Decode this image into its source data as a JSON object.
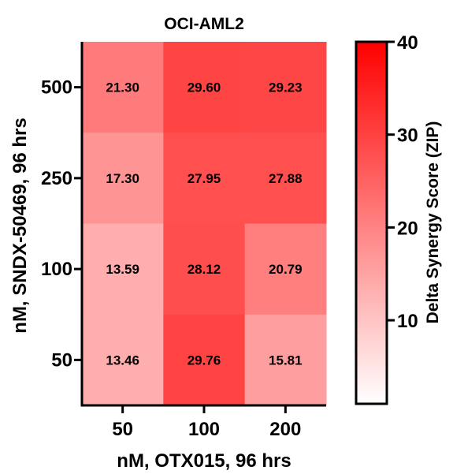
{
  "chart_data": {
    "type": "heatmap",
    "title": "OCI-AML2",
    "xlabel": "nM, OTX015, 96 hrs",
    "ylabel": "nM, SNDX-50469, 96 hrs",
    "x_categories": [
      "50",
      "100",
      "200"
    ],
    "y_categories": [
      "500",
      "250",
      "100",
      "50"
    ],
    "values": [
      [
        21.3,
        29.6,
        29.23
      ],
      [
        17.3,
        27.95,
        27.88
      ],
      [
        13.59,
        28.12,
        20.79
      ],
      [
        13.46,
        29.76,
        15.81
      ]
    ],
    "value_labels": [
      [
        "21.30",
        "29.60",
        "29.23"
      ],
      [
        "17.30",
        "27.95",
        "27.88"
      ],
      [
        "13.59",
        "28.12",
        "20.79"
      ],
      [
        "13.46",
        "29.76",
        "15.81"
      ]
    ],
    "colorbar": {
      "label": "Delta Synergy Score (ZIP)",
      "range": [
        1,
        40
      ],
      "ticks": [
        10,
        20,
        30,
        40
      ],
      "tick_labels": [
        "10",
        "20",
        "30",
        "40"
      ],
      "color_low": "#ffffff",
      "color_high": "#ff0000"
    }
  }
}
